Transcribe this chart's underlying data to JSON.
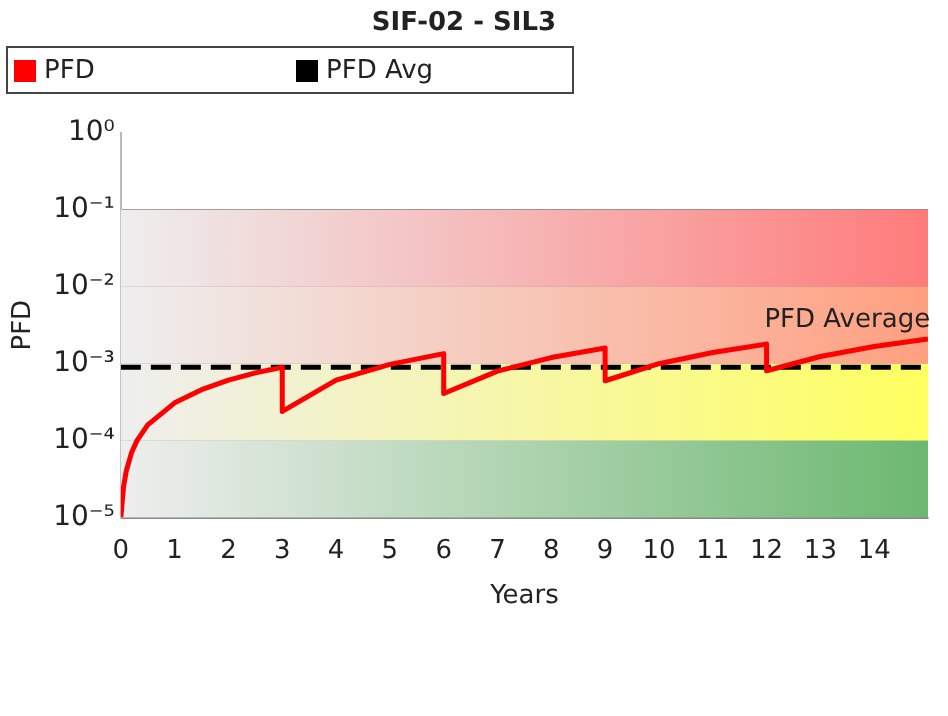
{
  "chart_data": {
    "type": "line",
    "title": "SIF-02 - SIL3",
    "xlabel": "Years",
    "ylabel": "PFD",
    "log": "y",
    "grid": "y",
    "legend": "top",
    "xlim": [
      0,
      15
    ],
    "xticks": [
      0,
      1,
      2,
      3,
      4,
      5,
      6,
      7,
      8,
      9,
      10,
      11,
      12,
      13,
      14
    ],
    "ylim": [
      1e-05,
      1
    ],
    "yticks": [
      {
        "value": 1,
        "label": "10⁰"
      },
      {
        "value": 0.1,
        "label": "10⁻¹"
      },
      {
        "value": 0.01,
        "label": "10⁻²"
      },
      {
        "value": 0.001,
        "label": "10⁻³"
      },
      {
        "value": 0.0001,
        "label": "10⁻⁴"
      },
      {
        "value": 1e-05,
        "label": "10⁻⁵"
      }
    ],
    "bands": [
      {
        "axis": "y",
        "from": 0.01,
        "to": 0.1,
        "color": "#ff7b7b"
      },
      {
        "axis": "y",
        "from": 0.001,
        "to": 0.01,
        "color": "#ff9f80"
      },
      {
        "axis": "y",
        "from": 0.0001,
        "to": 0.001,
        "color": "#ffff60"
      },
      {
        "axis": "y",
        "from": 1e-05,
        "to": 0.0001,
        "color": "#6cb870"
      }
    ],
    "series": [
      {
        "name": "PFD",
        "color": "#ff0000",
        "line_style": "solid",
        "x": [
          0,
          0.05,
          0.1,
          0.2,
          0.3,
          0.5,
          1,
          1.5,
          2,
          2.5,
          3,
          3,
          4,
          5,
          6,
          6,
          7,
          8,
          9,
          9,
          10,
          11,
          12,
          12,
          13,
          14,
          15
        ],
        "values": [
          1e-05,
          2.5e-05,
          4e-05,
          7e-05,
          0.0001,
          0.00016,
          0.00031,
          0.00046,
          0.00061,
          0.00076,
          0.0009,
          0.00024,
          0.00061,
          0.00098,
          0.00135,
          0.00041,
          0.0008,
          0.0012,
          0.0016,
          0.0006,
          0.001,
          0.0014,
          0.0018,
          0.00081,
          0.00124,
          0.00167,
          0.0021
        ]
      },
      {
        "name": "PFD Avg",
        "color": "#000000",
        "line_style": "dashed",
        "x": [
          0,
          15
        ],
        "values": [
          0.0009,
          0.0009
        ]
      }
    ],
    "annotations": [
      {
        "text": "PFD Average",
        "x": 13.5,
        "y": 0.0009
      }
    ]
  }
}
